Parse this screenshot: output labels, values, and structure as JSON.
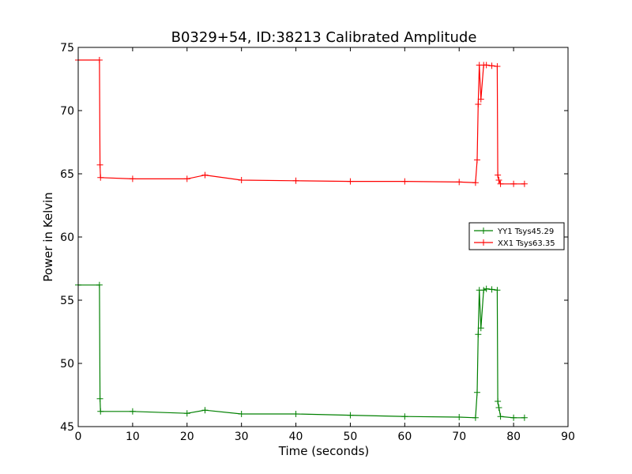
{
  "chart_data": {
    "type": "line",
    "title": "B0329+54, ID:38213 Calibrated Amplitude",
    "xlabel": "Time (seconds)",
    "ylabel": "Power in Kelvin",
    "xlim": [
      0,
      90
    ],
    "ylim": [
      45,
      75
    ],
    "xticks": [
      0,
      10,
      20,
      30,
      40,
      50,
      60,
      70,
      80,
      90
    ],
    "yticks": [
      45,
      50,
      55,
      60,
      65,
      70,
      75
    ],
    "grid": false,
    "legend_position": "center-right",
    "series": [
      {
        "name": "YY1 Tsys45.29",
        "color": "#008000",
        "marker": "plus",
        "x": [
          0,
          3.9,
          4.0,
          4.1,
          10,
          20,
          23.3,
          30,
          40,
          50,
          60,
          70,
          73.0,
          73.3,
          73.5,
          73.7,
          74.0,
          74.5,
          75,
          76,
          77.0,
          77.1,
          77.3,
          77.6,
          80,
          82
        ],
        "y": [
          56.2,
          56.2,
          47.2,
          46.2,
          46.2,
          46.05,
          46.3,
          46.0,
          46.0,
          45.9,
          45.8,
          45.75,
          45.7,
          47.7,
          52.3,
          55.8,
          52.8,
          55.8,
          55.9,
          55.85,
          55.8,
          47.0,
          46.5,
          45.8,
          45.7,
          45.7
        ]
      },
      {
        "name": "XX1 Tsys63.35",
        "color": "#ff0000",
        "marker": "plus",
        "x": [
          0,
          3.9,
          4.0,
          4.1,
          10,
          20,
          23.3,
          30,
          40,
          50,
          60,
          70,
          73.0,
          73.3,
          73.5,
          73.7,
          74.0,
          74.5,
          75,
          76,
          77.0,
          77.1,
          77.3,
          77.6,
          80,
          82
        ],
        "y": [
          74.0,
          74.0,
          65.7,
          64.7,
          64.6,
          64.6,
          64.9,
          64.5,
          64.45,
          64.4,
          64.4,
          64.35,
          64.3,
          66.1,
          70.5,
          73.6,
          70.9,
          73.6,
          73.6,
          73.55,
          73.5,
          64.9,
          64.5,
          64.2,
          64.2,
          64.2
        ]
      }
    ]
  }
}
